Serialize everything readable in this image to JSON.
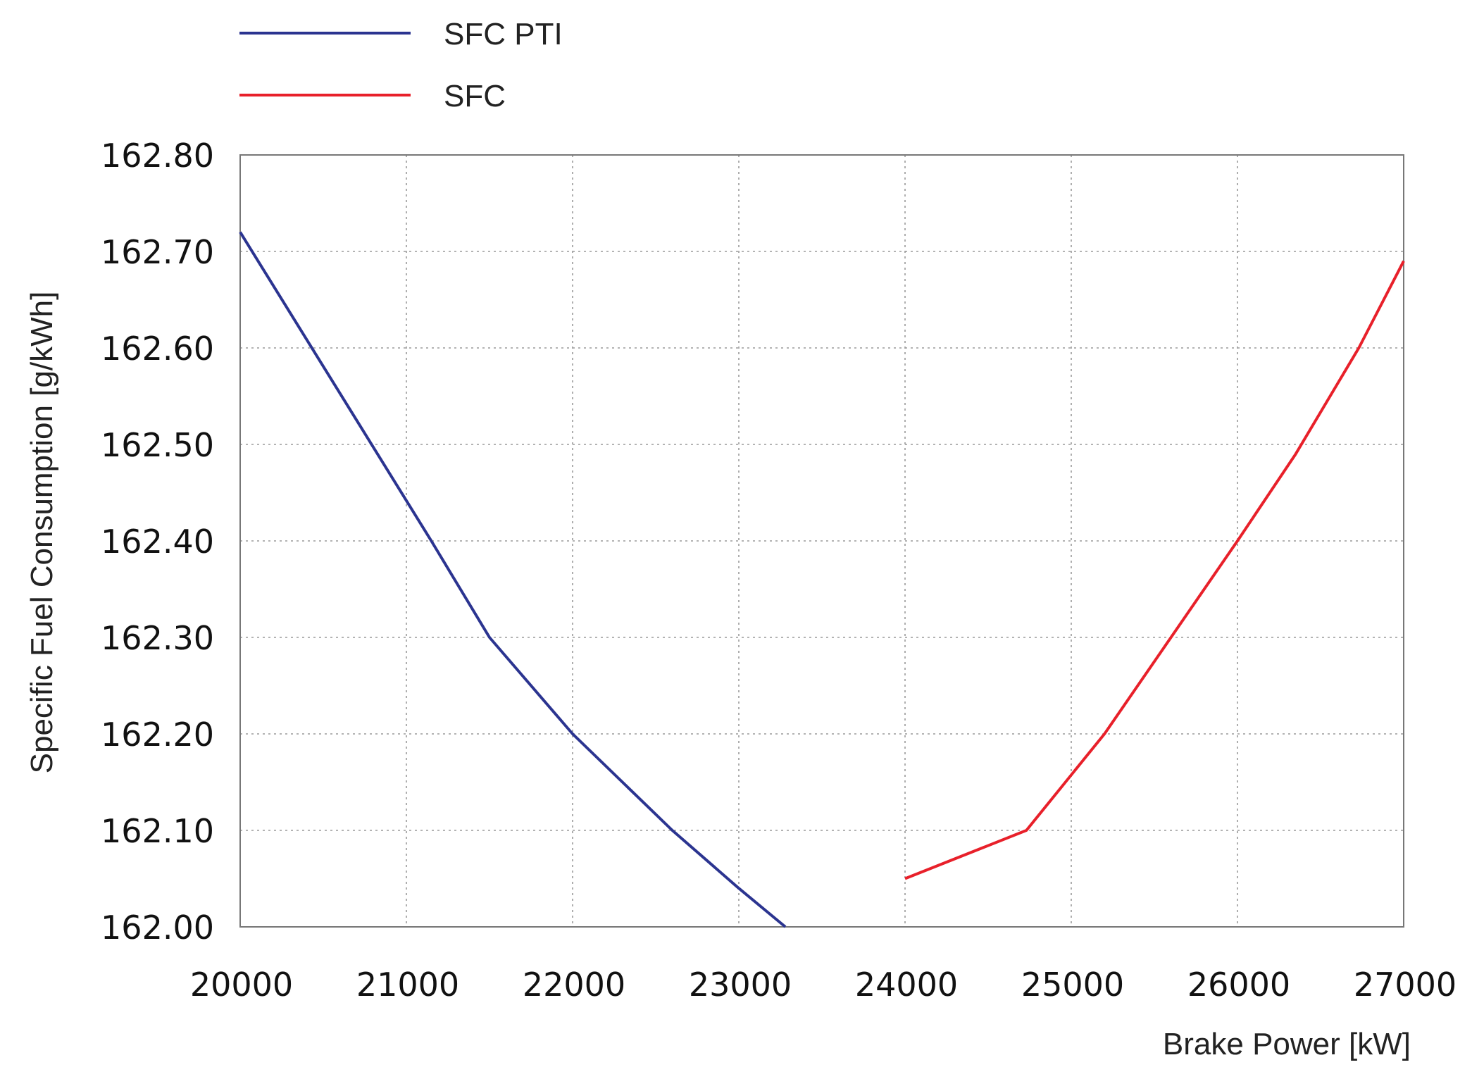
{
  "chart_data": {
    "type": "line",
    "title": "",
    "xlabel": "Brake Power [kW]",
    "ylabel": "Specific Fuel Consumption [g/kWh]",
    "xlim": [
      20000,
      27000
    ],
    "ylim": [
      162.0,
      162.8
    ],
    "x_ticks": [
      "20000",
      "21000",
      "22000",
      "23000",
      "24000",
      "25000",
      "26000",
      "27000"
    ],
    "y_ticks": [
      "162.00",
      "162.10",
      "162.20",
      "162.30",
      "162.40",
      "162.50",
      "162.60",
      "162.70",
      "162.80"
    ],
    "grid": true,
    "legend_position": "top-left, above plot",
    "series": [
      {
        "name": "SFC PTI",
        "color": "#2b3490",
        "x": [
          20000,
          21150,
          21500,
          22000,
          22600,
          23000,
          23280
        ],
        "y": [
          162.72,
          162.4,
          162.3,
          162.2,
          162.1,
          162.04,
          162.0
        ]
      },
      {
        "name": "SFC",
        "color": "#e8202a",
        "x": [
          24000,
          24730,
          25200,
          25600,
          26000,
          26350,
          26730,
          27000
        ],
        "y": [
          162.05,
          162.1,
          162.2,
          162.3,
          162.4,
          162.49,
          162.6,
          162.69
        ]
      }
    ]
  }
}
